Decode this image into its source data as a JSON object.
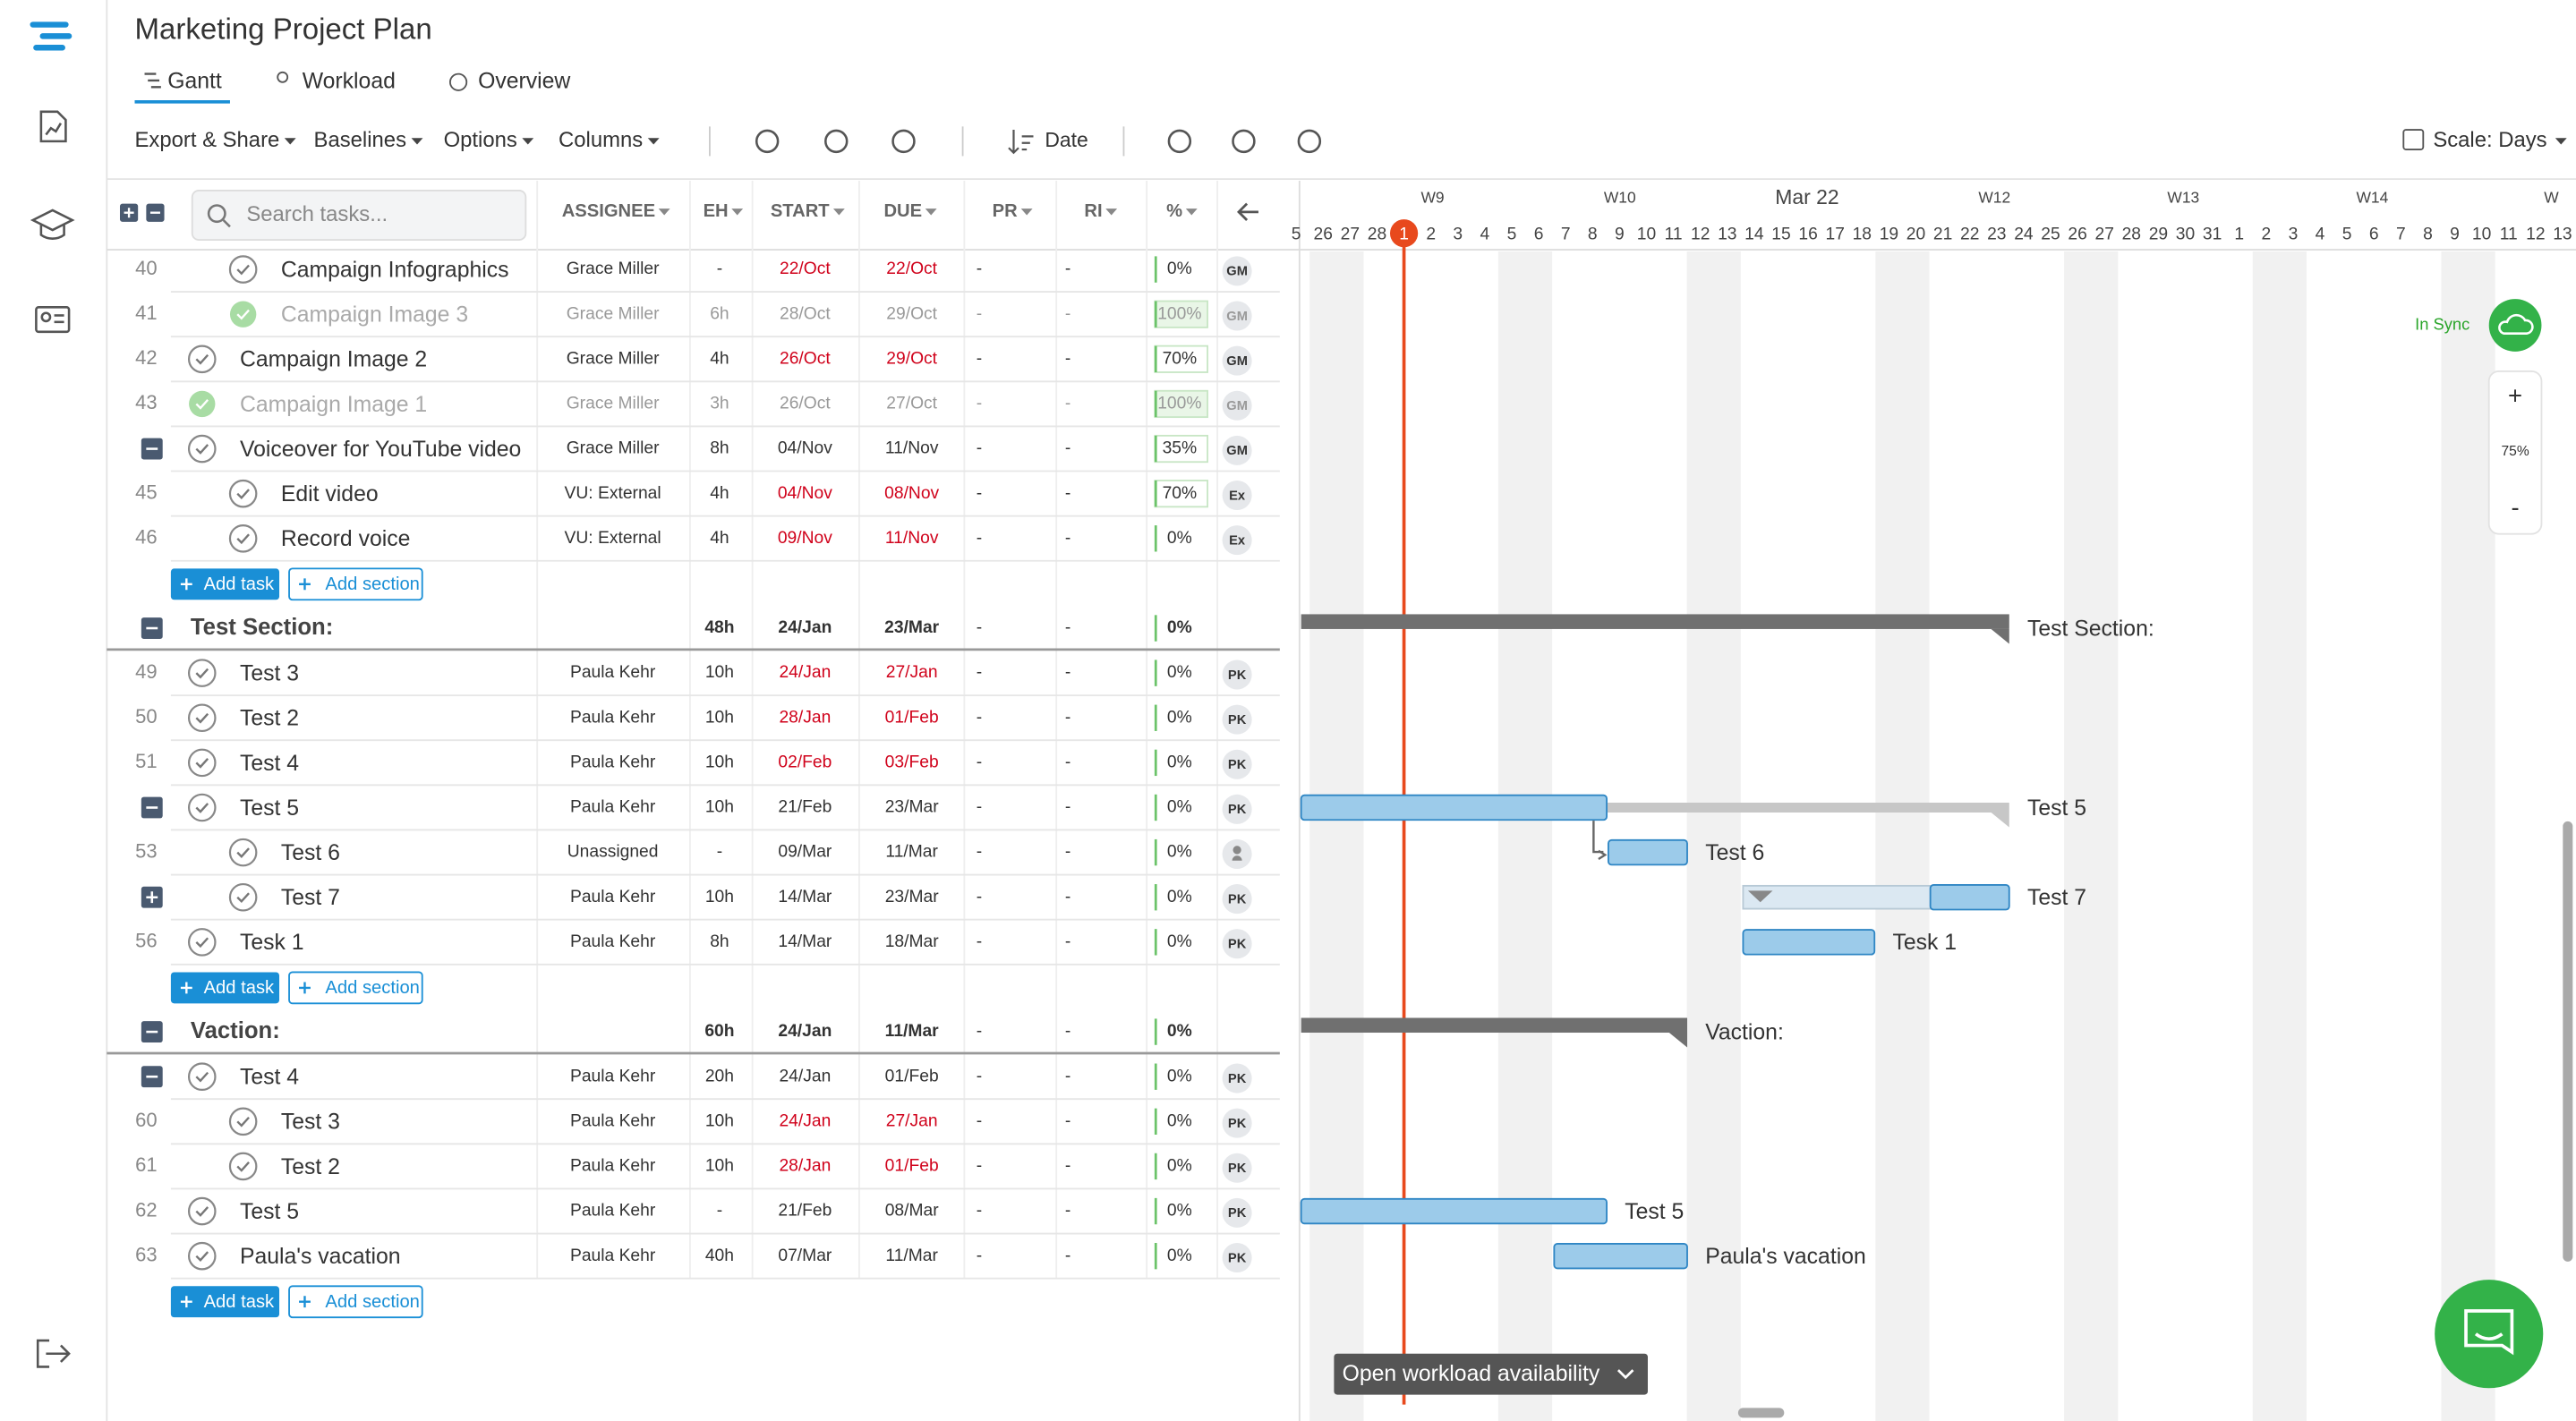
{
  "app": {
    "title": "Marketing Project Plan",
    "tabs": [
      "Gantt",
      "Workload",
      "Overview"
    ],
    "toolbar": [
      "Export & Share",
      "Baselines",
      "Options",
      "Columns"
    ],
    "sort": "Date",
    "scale": "Scale: Days"
  },
  "table": {
    "search_placeholder": "Search tasks...",
    "headers": [
      "ASSIGNEE",
      "EH",
      "START",
      "DUE",
      "PR",
      "RI",
      "%"
    ],
    "rows": [
      {
        "kind": "task",
        "num": "40",
        "name": "Campaign Infographics",
        "assignee": "Grace Miller",
        "eh": "-",
        "start": "22/Oct",
        "due": "22/Oct",
        "pr": "-",
        "ri": "-",
        "pct": "0%",
        "avatar": "GM",
        "indent": 1,
        "done": false,
        "overdue": true,
        "toggle": null
      },
      {
        "kind": "task",
        "num": "41",
        "name": "Campaign Image 3",
        "assignee": "Grace Miller",
        "eh": "6h",
        "start": "28/Oct",
        "due": "29/Oct",
        "pr": "-",
        "ri": "-",
        "pct": "100%",
        "avatar": "GM",
        "indent": 1,
        "done": true,
        "overdue": false,
        "toggle": null
      },
      {
        "kind": "task",
        "num": "42",
        "name": "Campaign Image 2",
        "assignee": "Grace Miller",
        "eh": "4h",
        "start": "26/Oct",
        "due": "29/Oct",
        "pr": "-",
        "ri": "-",
        "pct": "70%",
        "avatar": "GM",
        "indent": 0,
        "done": false,
        "overdue": true,
        "toggle": null
      },
      {
        "kind": "task",
        "num": "43",
        "name": "Campaign Image 1",
        "assignee": "Grace Miller",
        "eh": "3h",
        "start": "26/Oct",
        "due": "27/Oct",
        "pr": "-",
        "ri": "-",
        "pct": "100%",
        "avatar": "GM",
        "indent": 0,
        "done": true,
        "overdue": false,
        "toggle": null
      },
      {
        "kind": "task",
        "num": null,
        "name": "Voiceover for YouTube video",
        "assignee": "Grace Miller",
        "eh": "8h",
        "start": "04/Nov",
        "due": "11/Nov",
        "pr": "-",
        "ri": "-",
        "pct": "35%",
        "avatar": "GM",
        "indent": 0,
        "done": false,
        "overdue": false,
        "toggle": "collapse"
      },
      {
        "kind": "task",
        "num": "45",
        "name": "Edit video",
        "assignee": "VU: External",
        "eh": "4h",
        "start": "04/Nov",
        "due": "08/Nov",
        "pr": "-",
        "ri": "-",
        "pct": "70%",
        "avatar": "Ex",
        "indent": 1,
        "done": false,
        "overdue": true,
        "toggle": null
      },
      {
        "kind": "task",
        "num": "46",
        "name": "Record voice",
        "assignee": "VU: External",
        "eh": "4h",
        "start": "09/Nov",
        "due": "11/Nov",
        "pr": "-",
        "ri": "-",
        "pct": "0%",
        "avatar": "Ex",
        "indent": 1,
        "done": false,
        "overdue": true,
        "toggle": null
      },
      {
        "kind": "add",
        "buttons": [
          "Add task",
          "Add section"
        ]
      },
      {
        "kind": "section",
        "name": "Test Section:",
        "eh": "48h",
        "start": "24/Jan",
        "due": "23/Mar",
        "pr": "-",
        "ri": "-",
        "pct": "0%"
      },
      {
        "kind": "task",
        "num": "49",
        "name": "Test 3",
        "assignee": "Paula Kehr",
        "eh": "10h",
        "start": "24/Jan",
        "due": "27/Jan",
        "pr": "-",
        "ri": "-",
        "pct": "0%",
        "avatar": "PK",
        "indent": 0,
        "done": false,
        "overdue": true,
        "toggle": null
      },
      {
        "kind": "task",
        "num": "50",
        "name": "Test 2",
        "assignee": "Paula Kehr",
        "eh": "10h",
        "start": "28/Jan",
        "due": "01/Feb",
        "pr": "-",
        "ri": "-",
        "pct": "0%",
        "avatar": "PK",
        "indent": 0,
        "done": false,
        "overdue": true,
        "toggle": null
      },
      {
        "kind": "task",
        "num": "51",
        "name": "Test 4",
        "assignee": "Paula Kehr",
        "eh": "10h",
        "start": "02/Feb",
        "due": "03/Feb",
        "pr": "-",
        "ri": "-",
        "pct": "0%",
        "avatar": "PK",
        "indent": 0,
        "done": false,
        "overdue": true,
        "toggle": null
      },
      {
        "kind": "task",
        "num": null,
        "name": "Test 5",
        "assignee": "Paula Kehr",
        "eh": "10h",
        "start": "21/Feb",
        "due": "23/Mar",
        "pr": "-",
        "ri": "-",
        "pct": "0%",
        "avatar": "PK",
        "indent": 0,
        "done": false,
        "overdue": false,
        "toggle": "collapse"
      },
      {
        "kind": "task",
        "num": "53",
        "name": "Test 6",
        "assignee": "Unassigned",
        "eh": "-",
        "start": "09/Mar",
        "due": "11/Mar",
        "pr": "-",
        "ri": "-",
        "pct": "0%",
        "avatar": null,
        "indent": 1,
        "done": false,
        "overdue": false,
        "toggle": null
      },
      {
        "kind": "task",
        "num": null,
        "name": "Test 7",
        "assignee": "Paula Kehr",
        "eh": "10h",
        "start": "14/Mar",
        "due": "23/Mar",
        "pr": "-",
        "ri": "-",
        "pct": "0%",
        "avatar": "PK",
        "indent": 1,
        "done": false,
        "overdue": false,
        "toggle": "expand"
      },
      {
        "kind": "task",
        "num": "56",
        "name": "Tesk 1",
        "assignee": "Paula Kehr",
        "eh": "8h",
        "start": "14/Mar",
        "due": "18/Mar",
        "pr": "-",
        "ri": "-",
        "pct": "0%",
        "avatar": "PK",
        "indent": 0,
        "done": false,
        "overdue": false,
        "toggle": null
      },
      {
        "kind": "add",
        "buttons": [
          "Add task",
          "Add section"
        ]
      },
      {
        "kind": "section",
        "name": "Vaction:",
        "eh": "60h",
        "start": "24/Jan",
        "due": "11/Mar",
        "pr": "-",
        "ri": "-",
        "pct": "0%"
      },
      {
        "kind": "task",
        "num": null,
        "name": "Test 4",
        "assignee": "Paula Kehr",
        "eh": "20h",
        "start": "24/Jan",
        "due": "01/Feb",
        "pr": "-",
        "ri": "-",
        "pct": "0%",
        "avatar": "PK",
        "indent": 0,
        "done": false,
        "overdue": false,
        "toggle": "collapse"
      },
      {
        "kind": "task",
        "num": "60",
        "name": "Test 3",
        "assignee": "Paula Kehr",
        "eh": "10h",
        "start": "24/Jan",
        "due": "27/Jan",
        "pr": "-",
        "ri": "-",
        "pct": "0%",
        "avatar": "PK",
        "indent": 1,
        "done": false,
        "overdue": true,
        "toggle": null
      },
      {
        "kind": "task",
        "num": "61",
        "name": "Test 2",
        "assignee": "Paula Kehr",
        "eh": "10h",
        "start": "28/Jan",
        "due": "01/Feb",
        "pr": "-",
        "ri": "-",
        "pct": "0%",
        "avatar": "PK",
        "indent": 1,
        "done": false,
        "overdue": true,
        "toggle": null
      },
      {
        "kind": "task",
        "num": "62",
        "name": "Test 5",
        "assignee": "Paula Kehr",
        "eh": "-",
        "start": "21/Feb",
        "due": "08/Mar",
        "pr": "-",
        "ri": "-",
        "pct": "0%",
        "avatar": "PK",
        "indent": 0,
        "done": false,
        "overdue": false,
        "toggle": null
      },
      {
        "kind": "task",
        "num": "63",
        "name": "Paula's vacation",
        "assignee": "Paula Kehr",
        "eh": "40h",
        "start": "07/Mar",
        "due": "11/Mar",
        "pr": "-",
        "ri": "-",
        "pct": "0%",
        "avatar": "PK",
        "indent": 0,
        "done": false,
        "overdue": false,
        "toggle": null
      },
      {
        "kind": "add",
        "buttons": [
          "Add task",
          "Add section"
        ]
      }
    ]
  },
  "timeline": {
    "weeks": [
      "W9",
      "W10",
      "Mar 22",
      "W12",
      "W13",
      "W14",
      "W"
    ],
    "days": [
      "5",
      "26",
      "27",
      "28",
      "1",
      "2",
      "3",
      "4",
      "5",
      "6",
      "7",
      "8",
      "9",
      "10",
      "11",
      "12",
      "13",
      "14",
      "15",
      "16",
      "17",
      "18",
      "19",
      "20",
      "21",
      "22",
      "23",
      "24",
      "25",
      "26",
      "27",
      "28",
      "29",
      "30",
      "31",
      "1",
      "2",
      "3",
      "4",
      "5",
      "6",
      "7",
      "8",
      "9",
      "10",
      "11",
      "12",
      "13"
    ],
    "bar_labels": [
      "Test Section:",
      "Test 5",
      "Test 6",
      "Test 7",
      "Tesk 1",
      "Vaction:",
      "Test 5",
      "Paula's vacation"
    ]
  },
  "controls": {
    "sync": "In Sync",
    "zoom_in": "+",
    "zoom": "75%",
    "zoom_out": "-",
    "workload_button": "Open workload availability"
  }
}
